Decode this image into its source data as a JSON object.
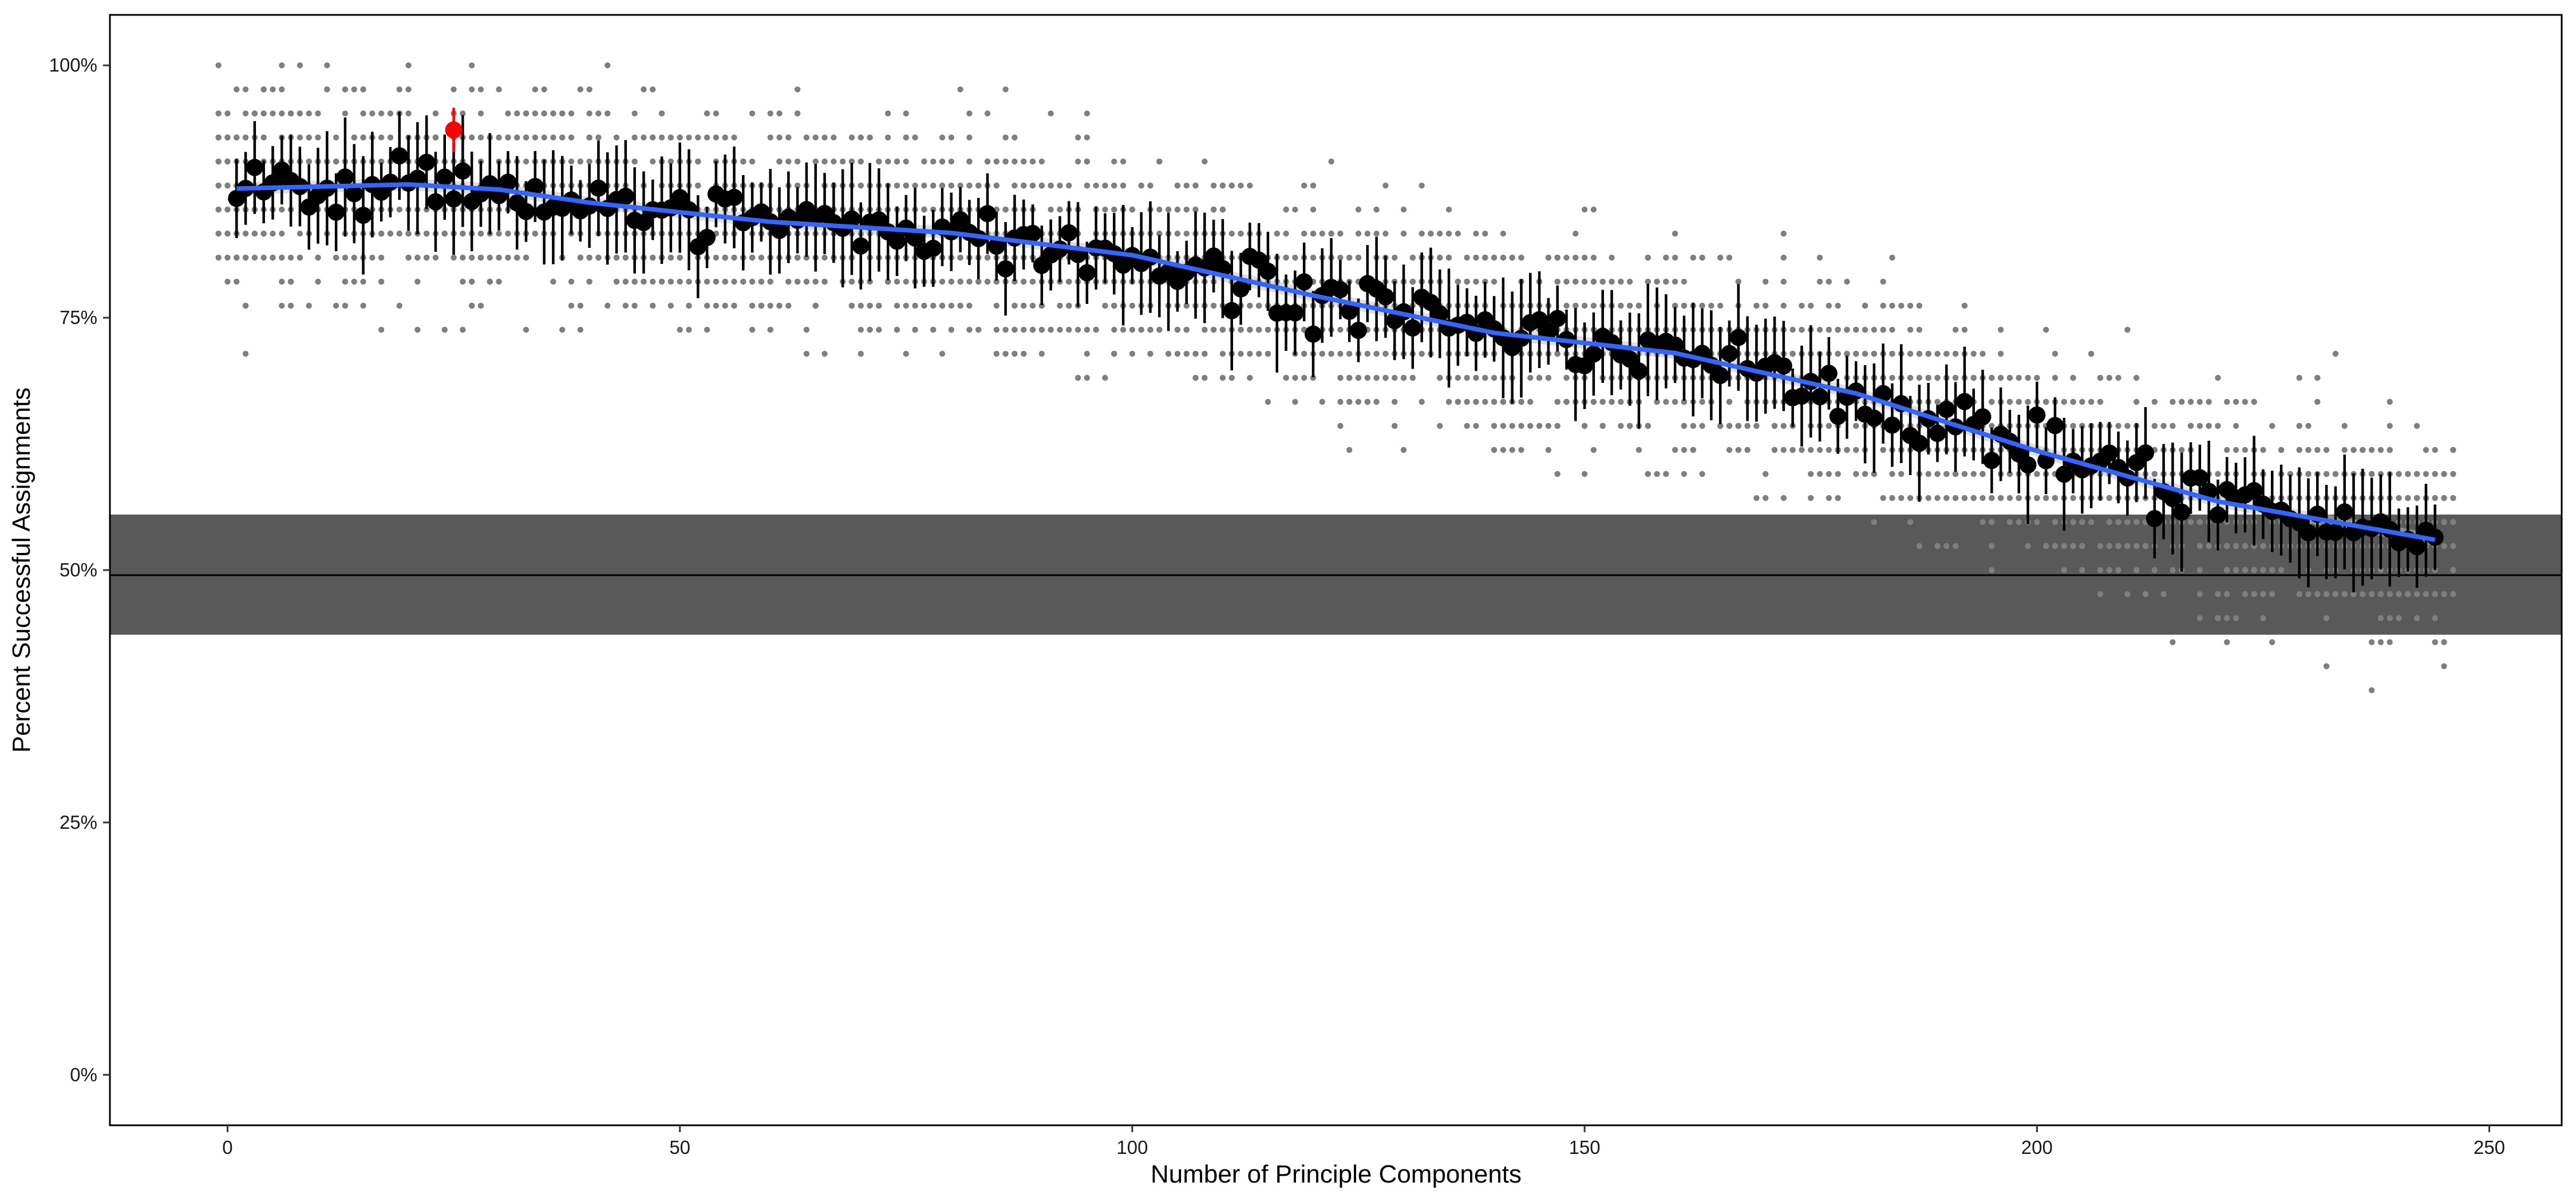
{
  "chart_data": {
    "type": "scatter",
    "title": "",
    "xlabel": "Number of Principle Components",
    "ylabel": "Percent Successful Assignments",
    "xlim": [
      -13,
      258
    ],
    "ylim": [
      -0.05,
      1.05
    ],
    "x_ticks": [
      0,
      50,
      100,
      150,
      200,
      250
    ],
    "x_tick_labels": [
      "0",
      "50",
      "100",
      "150",
      "200",
      "250"
    ],
    "y_ticks": [
      0,
      0.25,
      0.5,
      0.75,
      1.0
    ],
    "y_tick_labels": [
      "0%",
      "25%",
      "50%",
      "75%",
      "100%"
    ],
    "grid": false,
    "legend": "none",
    "reference_line": {
      "y": 0.495
    },
    "reference_band": {
      "ymin": 0.436,
      "ymax": 0.555
    },
    "colors": {
      "band": "#595959",
      "reference_line": "#000000",
      "raw_points": "#7f7f7f",
      "means": "#000000",
      "highlight": "#ff0000",
      "smooth": "#3366ff",
      "smooth_ribbon": "#bdbdbd"
    },
    "trend_anchors": [
      [
        1,
        0.878
      ],
      [
        20,
        0.882
      ],
      [
        30,
        0.877
      ],
      [
        40,
        0.864
      ],
      [
        60,
        0.845
      ],
      [
        80,
        0.834
      ],
      [
        100,
        0.812
      ],
      [
        120,
        0.772
      ],
      [
        140,
        0.735
      ],
      [
        160,
        0.715
      ],
      [
        180,
        0.675
      ],
      [
        200,
        0.618
      ],
      [
        220,
        0.568
      ],
      [
        244,
        0.53
      ]
    ],
    "highlight_point": {
      "x": 25,
      "y": 0.936,
      "ymin": 0.914,
      "ymax": 0.958
    },
    "series": [
      {
        "name": "",
        "kind": "raw_replicates",
        "x_range": [
          -1,
          246
        ],
        "per_x": 18,
        "jitter": 0.08
      },
      {
        "name": "",
        "kind": "mean_with_error_bars",
        "x": "1..244",
        "noise_sd": 0.022
      },
      {
        "name": "",
        "kind": "loess_smooth",
        "ribbon_half_width": 0.006
      }
    ]
  }
}
